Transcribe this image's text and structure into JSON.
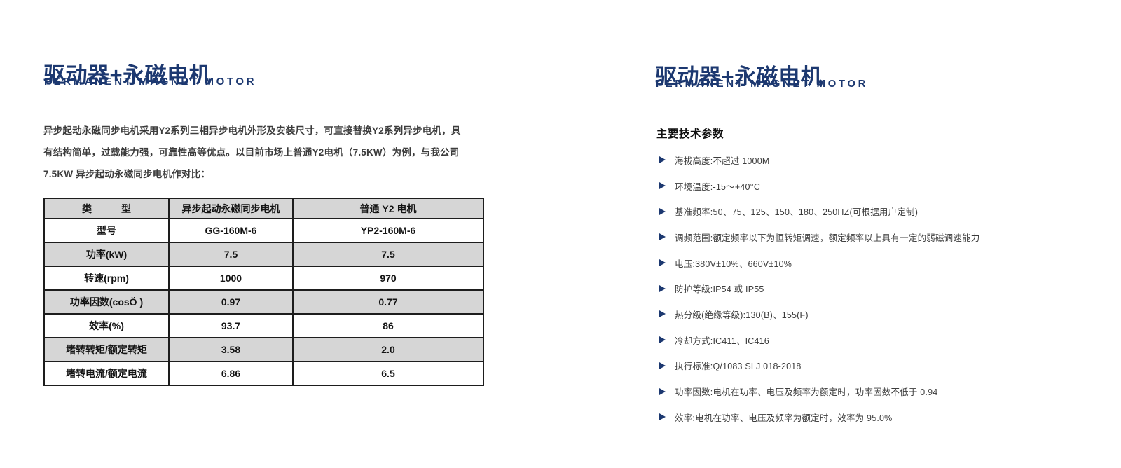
{
  "colors": {
    "navy": "#1c3870",
    "stripe": "#d6d6d6"
  },
  "left": {
    "title": "驱动器+永磁电机",
    "subtitle": "PERMANENT MAGNET MOTOR",
    "paragraph_lines": [
      "异步起动永磁同步电机采用Y2系列三相异步电机外形及安装尺寸，可直接替换Y2系列异步电机，具",
      "有结构简单，过载能力强，可靠性高等优点。以目前市场上普通Y2电机（7.5KW）为例，与我公司",
      "7.5KW 异步起动永磁同步电机作对比："
    ],
    "table": {
      "headers": [
        "类　　　型",
        "异步起动永磁同步电机",
        "普通 Y2 电机"
      ],
      "rows": [
        [
          "型号",
          "GG-160M-6",
          "YP2-160M-6"
        ],
        [
          "功率(kW)",
          "7.5",
          "7.5"
        ],
        [
          "转速(rpm)",
          "1000",
          "970"
        ],
        [
          "功率因数(cosÖ )",
          "0.97",
          "0.77"
        ],
        [
          "效率(%)",
          "93.7",
          "86"
        ],
        [
          "堵转转矩/额定转矩",
          "3.58",
          "2.0"
        ],
        [
          "堵转电流/额定电流",
          "6.86",
          "6.5"
        ]
      ]
    }
  },
  "right": {
    "title": "驱动器+永磁电机",
    "subtitle": "PERMANENT MAGNET MOTOR",
    "section_heading": "主要技术参数",
    "parameters": [
      "海拔高度:不超过 1000M",
      "环境温度:-15～+40°C",
      "基准频率:50、75、125、150、180、250HZ(可根据用户定制)",
      "调频范围:额定频率以下为恒转矩调速，额定频率以上具有一定的弱磁调速能力",
      "电压:380V±10%、660V±10%",
      "防护等级:IP54 或 IP55",
      "热分级(绝缘等级):130(B)、155(F)",
      "冷却方式:IC411、IC416",
      "执行标准:Q/1083 SLJ 018-2018",
      "功率因数:电机在功率、电压及频率为额定时，功率因数不低于 0.94",
      "效率:电机在功率、电压及频率为额定时，效率为 95.0%"
    ]
  }
}
